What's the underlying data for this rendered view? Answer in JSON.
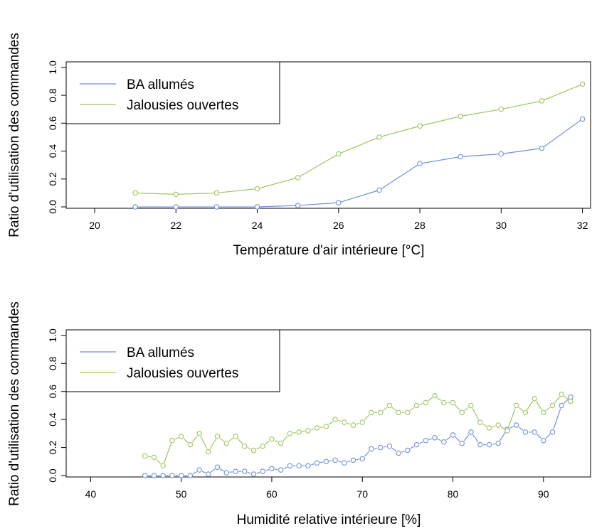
{
  "colors": {
    "ba": "#6f8fe0",
    "jal": "#9bc65a"
  },
  "chart_data": [
    {
      "type": "line",
      "xlabel": "Température d'air intérieure [°C]",
      "ylabel": "Ratio d'utilisation des commandes",
      "xlim": [
        19.3,
        32.2
      ],
      "ylim": [
        -0.01,
        1.04
      ],
      "xticks": [
        20,
        22,
        24,
        26,
        28,
        30,
        32
      ],
      "yticks": [
        0.0,
        0.2,
        0.4,
        0.6,
        0.8,
        1.0
      ],
      "legend_position": "top-left",
      "series": [
        {
          "name": "BA allumés",
          "x": [
            21,
            22,
            23,
            24,
            25,
            26,
            27,
            28,
            29,
            30,
            31,
            32
          ],
          "values": [
            0.0,
            0.0,
            0.0,
            0.0,
            0.01,
            0.03,
            0.12,
            0.31,
            0.36,
            0.38,
            0.42,
            0.63
          ]
        },
        {
          "name": "Jalousies ouvertes",
          "x": [
            21,
            22,
            23,
            24,
            25,
            26,
            27,
            28,
            29,
            30,
            31,
            32
          ],
          "values": [
            0.1,
            0.09,
            0.1,
            0.13,
            0.21,
            0.38,
            0.5,
            0.58,
            0.65,
            0.7,
            0.76,
            0.88
          ]
        }
      ]
    },
    {
      "type": "line",
      "xlabel": "Humidité relative intérieure [%]",
      "ylabel": "Ratio d'utilisation des commandes",
      "xlim": [
        37.3,
        95.2
      ],
      "ylim": [
        -0.01,
        1.04
      ],
      "xticks": [
        40,
        50,
        60,
        70,
        80,
        90
      ],
      "yticks": [
        0.0,
        0.2,
        0.4,
        0.6,
        0.8,
        1.0
      ],
      "legend_position": "top-left",
      "series": [
        {
          "name": "BA allumés",
          "x": [
            46,
            47,
            48,
            49,
            50,
            51,
            52,
            53,
            54,
            55,
            56,
            57,
            58,
            59,
            60,
            61,
            62,
            63,
            64,
            65,
            66,
            67,
            68,
            69,
            70,
            71,
            72,
            73,
            74,
            75,
            76,
            77,
            78,
            79,
            80,
            81,
            82,
            83,
            84,
            85,
            86,
            87,
            88,
            89,
            90,
            91,
            92,
            93
          ],
          "values": [
            0,
            0,
            0,
            0,
            0,
            0,
            0.04,
            0.01,
            0.06,
            0.02,
            0.03,
            0.03,
            0.01,
            0.03,
            0.05,
            0.04,
            0.07,
            0.07,
            0.07,
            0.09,
            0.1,
            0.11,
            0.09,
            0.11,
            0.12,
            0.19,
            0.2,
            0.21,
            0.16,
            0.18,
            0.22,
            0.25,
            0.27,
            0.24,
            0.29,
            0.23,
            0.31,
            0.22,
            0.22,
            0.23,
            0.33,
            0.36,
            0.31,
            0.31,
            0.25,
            0.31,
            0.5,
            0.56
          ]
        },
        {
          "name": "Jalousies ouvertes",
          "x": [
            46,
            47,
            48,
            49,
            50,
            51,
            52,
            53,
            54,
            55,
            56,
            57,
            58,
            59,
            60,
            61,
            62,
            63,
            64,
            65,
            66,
            67,
            68,
            69,
            70,
            71,
            72,
            73,
            74,
            75,
            76,
            77,
            78,
            79,
            80,
            81,
            82,
            83,
            84,
            85,
            86,
            87,
            88,
            89,
            90,
            91,
            92,
            93
          ],
          "values": [
            0.14,
            0.13,
            0.07,
            0.25,
            0.28,
            0.22,
            0.3,
            0.17,
            0.28,
            0.23,
            0.28,
            0.21,
            0.18,
            0.21,
            0.26,
            0.23,
            0.3,
            0.31,
            0.32,
            0.34,
            0.35,
            0.4,
            0.38,
            0.36,
            0.38,
            0.45,
            0.45,
            0.5,
            0.45,
            0.45,
            0.5,
            0.52,
            0.57,
            0.52,
            0.52,
            0.45,
            0.5,
            0.38,
            0.34,
            0.36,
            0.32,
            0.5,
            0.45,
            0.55,
            0.45,
            0.5,
            0.58,
            0.53
          ]
        }
      ]
    }
  ]
}
